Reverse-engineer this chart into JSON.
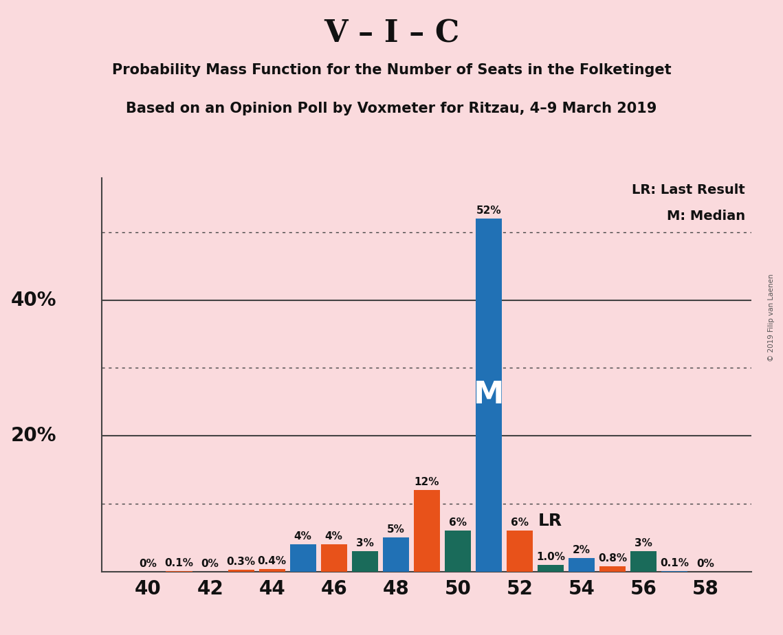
{
  "title_main": "V – I – C",
  "title_sub1": "Probability Mass Function for the Number of Seats in the Folketinget",
  "title_sub2": "Based on an Opinion Poll by Voxmeter for Ritzau, 4–9 March 2019",
  "copyright": "© 2019 Filip van Laenen",
  "background_color": "#fadadd",
  "bar_data": [
    {
      "seat": 40,
      "value": 0.0,
      "color": "#2171b5",
      "label": "0%"
    },
    {
      "seat": 41,
      "value": 0.1,
      "color": "#e8521a",
      "label": "0.1%"
    },
    {
      "seat": 42,
      "value": 0.0,
      "color": "#1a6b5a",
      "label": "0%"
    },
    {
      "seat": 43,
      "value": 0.3,
      "color": "#e8521a",
      "label": "0.3%"
    },
    {
      "seat": 44,
      "value": 0.4,
      "color": "#e8521a",
      "label": "0.4%"
    },
    {
      "seat": 45,
      "value": 4.0,
      "color": "#2171b5",
      "label": "4%"
    },
    {
      "seat": 46,
      "value": 4.0,
      "color": "#e8521a",
      "label": "4%"
    },
    {
      "seat": 47,
      "value": 3.0,
      "color": "#1a6b5a",
      "label": "3%"
    },
    {
      "seat": 48,
      "value": 5.0,
      "color": "#2171b5",
      "label": "5%"
    },
    {
      "seat": 49,
      "value": 12.0,
      "color": "#e8521a",
      "label": "12%"
    },
    {
      "seat": 50,
      "value": 6.0,
      "color": "#1a6b5a",
      "label": "6%"
    },
    {
      "seat": 51,
      "value": 52.0,
      "color": "#2171b5",
      "label": "52%"
    },
    {
      "seat": 52,
      "value": 6.0,
      "color": "#e8521a",
      "label": "6%"
    },
    {
      "seat": 53,
      "value": 1.0,
      "color": "#1a6b5a",
      "label": "1.0%"
    },
    {
      "seat": 54,
      "value": 2.0,
      "color": "#2171b5",
      "label": "2%"
    },
    {
      "seat": 55,
      "value": 0.8,
      "color": "#e8521a",
      "label": "0.8%"
    },
    {
      "seat": 56,
      "value": 3.0,
      "color": "#1a6b5a",
      "label": "3%"
    },
    {
      "seat": 57,
      "value": 0.1,
      "color": "#2171b5",
      "label": "0.1%"
    },
    {
      "seat": 58,
      "value": 0.0,
      "color": "#1a6b5a",
      "label": "0%"
    }
  ],
  "median_seat": 51,
  "median_label": "M",
  "lr_seat": 52,
  "lr_label": "LR",
  "legend_lr": "LR: Last Result",
  "legend_m": "M: Median",
  "ytick_positions": [
    0,
    10,
    20,
    30,
    40,
    50
  ],
  "ytick_labels_show": {
    "20": "20%",
    "40": "40%"
  },
  "ylim": [
    0,
    58
  ],
  "xlim": [
    38.5,
    59.5
  ],
  "xticks": [
    40,
    42,
    44,
    46,
    48,
    50,
    52,
    54,
    56,
    58
  ],
  "dotted_lines": [
    10,
    30,
    50
  ],
  "solid_lines": [
    20,
    40
  ],
  "bar_width": 0.85
}
